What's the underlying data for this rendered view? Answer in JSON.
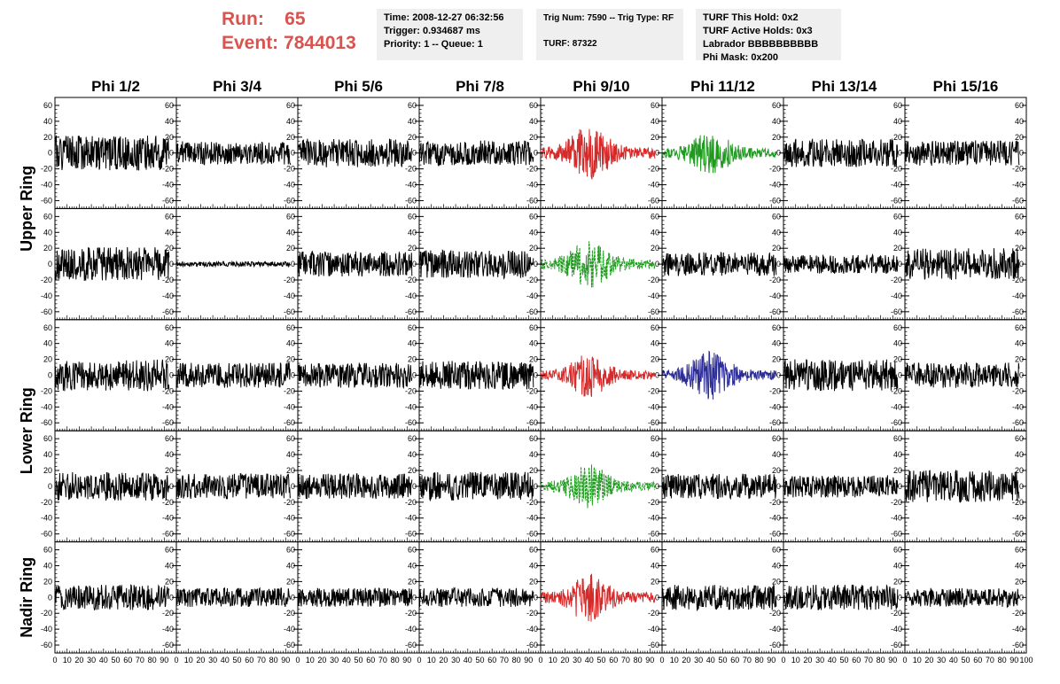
{
  "header": {
    "run_label": "Run:",
    "run_value": "65",
    "event_label": "Event:",
    "event_value": "7844013"
  },
  "info": {
    "time": "Time: 2008-12-27 06:32:56",
    "trigger": "Trigger: 0.934687 ms",
    "priority": "Priority: 1 -- Queue: 1",
    "trig_num": "Trig Num: 7590 -- Trig Type: RF",
    "turf": "TURF: 87322",
    "turf_this_hold": "TURF This Hold: 0x2",
    "turf_active_holds": "TURF Active Holds: 0x3",
    "labrador": "Labrador BBBBBBBBBB",
    "phi_mask": "Phi Mask: 0x200"
  },
  "columns": [
    "Phi 1/2",
    "Phi 3/4",
    "Phi 5/6",
    "Phi 7/8",
    "Phi 9/10",
    "Phi 11/12",
    "Phi 13/14",
    "Phi 15/16"
  ],
  "ring_labels": [
    {
      "label": "Upper Ring",
      "rows": [
        0,
        1
      ]
    },
    {
      "label": "Lower Ring",
      "rows": [
        2,
        3
      ]
    },
    {
      "label": "Nadir Ring",
      "rows": [
        4,
        4
      ]
    }
  ],
  "colors": {
    "black": "#000000",
    "red": "#d62a2a",
    "green": "#1f9a1f",
    "blue": "#2d2d96",
    "header_red": "#d9534f",
    "info_bg": "#efefef"
  },
  "chart_data": {
    "type": "line",
    "xlim": [
      0,
      100
    ],
    "ylim": [
      -70,
      70
    ],
    "x_tick_labels": [
      "0",
      "10",
      "20",
      "30",
      "40",
      "50",
      "60",
      "70",
      "80",
      "90",
      "100"
    ],
    "y_tick_labels": [
      "-60",
      "-40",
      "-20",
      "0",
      "20",
      "40",
      "60"
    ],
    "x_max_sample": 94,
    "panels": [
      [
        {
          "c": "black",
          "a": 22,
          "s": 1
        },
        {
          "c": "black",
          "a": 15,
          "s": 2
        },
        {
          "c": "black",
          "a": 18,
          "s": 3
        },
        {
          "c": "black",
          "a": 16,
          "s": 4
        },
        {
          "c": "red",
          "a": 20,
          "s": 5,
          "burst": 1
        },
        {
          "c": "green",
          "a": 16,
          "s": 6,
          "burst": 1
        },
        {
          "c": "black",
          "a": 18,
          "s": 7
        },
        {
          "c": "black",
          "a": 16,
          "s": 8
        }
      ],
      [
        {
          "c": "black",
          "a": 22,
          "s": 9
        },
        {
          "c": "black",
          "a": 3,
          "s": 10
        },
        {
          "c": "black",
          "a": 16,
          "s": 11
        },
        {
          "c": "black",
          "a": 18,
          "s": 12
        },
        {
          "c": "green",
          "a": 18,
          "s": 13,
          "burst": 1,
          "dash": 1
        },
        {
          "c": "black",
          "a": 15,
          "s": 14
        },
        {
          "c": "black",
          "a": 12,
          "s": 15
        },
        {
          "c": "black",
          "a": 20,
          "s": 16
        }
      ],
      [
        {
          "c": "black",
          "a": 20,
          "s": 17
        },
        {
          "c": "black",
          "a": 16,
          "s": 18
        },
        {
          "c": "black",
          "a": 16,
          "s": 19
        },
        {
          "c": "black",
          "a": 18,
          "s": 20
        },
        {
          "c": "red",
          "a": 16,
          "s": 21,
          "burst": 1
        },
        {
          "c": "blue",
          "a": 18,
          "s": 22,
          "burst": 1
        },
        {
          "c": "black",
          "a": 20,
          "s": 23
        },
        {
          "c": "black",
          "a": 16,
          "s": 24
        }
      ],
      [
        {
          "c": "black",
          "a": 18,
          "s": 25
        },
        {
          "c": "black",
          "a": 16,
          "s": 26
        },
        {
          "c": "black",
          "a": 16,
          "s": 27
        },
        {
          "c": "black",
          "a": 18,
          "s": 28
        },
        {
          "c": "green",
          "a": 16,
          "s": 29,
          "burst": 1,
          "dash": 1
        },
        {
          "c": "black",
          "a": 16,
          "s": 30
        },
        {
          "c": "black",
          "a": 14,
          "s": 31
        },
        {
          "c": "black",
          "a": 20,
          "s": 32
        }
      ],
      [
        {
          "c": "black",
          "a": 16,
          "s": 33
        },
        {
          "c": "black",
          "a": 12,
          "s": 34
        },
        {
          "c": "black",
          "a": 12,
          "s": 35
        },
        {
          "c": "black",
          "a": 12,
          "s": 36
        },
        {
          "c": "red",
          "a": 18,
          "s": 37,
          "burst": 1
        },
        {
          "c": "black",
          "a": 16,
          "s": 38
        },
        {
          "c": "black",
          "a": 16,
          "s": 39
        },
        {
          "c": "black",
          "a": 12,
          "s": 40
        }
      ]
    ]
  }
}
